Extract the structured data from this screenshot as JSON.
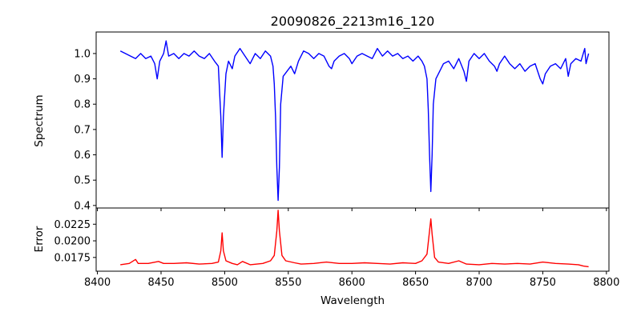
{
  "chart_data": [
    {
      "type": "line",
      "title": "20090826_2213m16_120",
      "xlabel": "",
      "ylabel": "Spectrum",
      "xlim": [
        8399,
        8802
      ],
      "ylim": [
        0.39,
        1.085
      ],
      "xticks": [
        8400,
        8450,
        8500,
        8550,
        8600,
        8650,
        8700,
        8750,
        8800
      ],
      "yticks": [
        0.4,
        0.5,
        0.6,
        0.7,
        0.8,
        0.9,
        1.0
      ],
      "ytick_labels": [
        "0.4",
        "0.5",
        "0.6",
        "0.7",
        "0.8",
        "0.9",
        "1.0"
      ],
      "grid": false,
      "series": [
        {
          "name": "Spectrum",
          "color": "#0000ff",
          "x": [
            8418,
            8422,
            8426,
            8430,
            8434,
            8438,
            8442,
            8445,
            8447,
            8449,
            8452,
            8454,
            8456,
            8460,
            8464,
            8468,
            8472,
            8476,
            8480,
            8484,
            8488,
            8492,
            8495,
            8497,
            8498,
            8499,
            8501,
            8503,
            8506,
            8508,
            8512,
            8516,
            8520,
            8524,
            8528,
            8532,
            8536,
            8538,
            8539,
            8540,
            8541,
            8542,
            8543,
            8544,
            8546,
            8549,
            8552,
            8555,
            8558,
            8562,
            8566,
            8570,
            8574,
            8578,
            8582,
            8584,
            8586,
            8590,
            8594,
            8598,
            8600,
            8604,
            8608,
            8612,
            8616,
            8620,
            8624,
            8628,
            8632,
            8636,
            8640,
            8644,
            8648,
            8652,
            8655,
            8657,
            8659,
            8660,
            8661,
            8662,
            8663,
            8664,
            8666,
            8668,
            8672,
            8676,
            8680,
            8684,
            8688,
            8690,
            8692,
            8696,
            8700,
            8704,
            8708,
            8712,
            8714,
            8716,
            8720,
            8724,
            8728,
            8732,
            8736,
            8740,
            8744,
            8748,
            8750,
            8752,
            8756,
            8760,
            8764,
            8768,
            8770,
            8772,
            8776,
            8780,
            8783,
            8784,
            8786
          ],
          "y": [
            1.01,
            1.0,
            0.99,
            0.98,
            1.0,
            0.98,
            0.99,
            0.96,
            0.9,
            0.97,
            1.0,
            1.05,
            0.99,
            1.0,
            0.98,
            1.0,
            0.99,
            1.01,
            0.99,
            0.98,
            1.0,
            0.97,
            0.95,
            0.75,
            0.59,
            0.75,
            0.92,
            0.97,
            0.94,
            0.99,
            1.02,
            0.99,
            0.96,
            1.0,
            0.98,
            1.01,
            0.99,
            0.95,
            0.88,
            0.75,
            0.55,
            0.42,
            0.55,
            0.8,
            0.91,
            0.93,
            0.95,
            0.92,
            0.97,
            1.01,
            1.0,
            0.98,
            1.0,
            0.99,
            0.95,
            0.94,
            0.97,
            0.99,
            1.0,
            0.98,
            0.96,
            0.99,
            1.0,
            0.99,
            0.98,
            1.02,
            0.99,
            1.01,
            0.99,
            1.0,
            0.98,
            0.99,
            0.97,
            0.99,
            0.97,
            0.95,
            0.9,
            0.78,
            0.6,
            0.455,
            0.6,
            0.8,
            0.9,
            0.92,
            0.96,
            0.97,
            0.94,
            0.98,
            0.93,
            0.89,
            0.97,
            1.0,
            0.98,
            1.0,
            0.97,
            0.95,
            0.93,
            0.96,
            0.99,
            0.96,
            0.94,
            0.96,
            0.93,
            0.95,
            0.96,
            0.9,
            0.88,
            0.92,
            0.95,
            0.96,
            0.94,
            0.98,
            0.91,
            0.96,
            0.98,
            0.97,
            1.02,
            0.96,
            1.0
          ]
        }
      ]
    },
    {
      "type": "line",
      "xlabel": "Wavelength",
      "ylabel": "Error",
      "xlim": [
        8399,
        8802
      ],
      "ylim": [
        0.01543,
        0.02494
      ],
      "xticks": [
        8400,
        8450,
        8500,
        8550,
        8600,
        8650,
        8700,
        8750,
        8800
      ],
      "xtick_labels": [
        "8400",
        "8450",
        "8500",
        "8550",
        "8600",
        "8650",
        "8700",
        "8750",
        "8800"
      ],
      "yticks": [
        0.0175,
        0.02,
        0.0225
      ],
      "ytick_labels": [
        "0.0175",
        "0.0200",
        "0.0225"
      ],
      "grid": false,
      "series": [
        {
          "name": "Error",
          "color": "#ff0000",
          "x": [
            8418,
            8425,
            8430,
            8432,
            8440,
            8448,
            8452,
            8460,
            8470,
            8480,
            8490,
            8495,
            8497,
            8498,
            8499,
            8501,
            8506,
            8510,
            8514,
            8520,
            8530,
            8536,
            8539,
            8541,
            8542,
            8543,
            8545,
            8548,
            8555,
            8560,
            8570,
            8580,
            8590,
            8600,
            8610,
            8620,
            8630,
            8640,
            8650,
            8655,
            8659,
            8661,
            8662,
            8663,
            8665,
            8668,
            8676,
            8684,
            8690,
            8700,
            8710,
            8720,
            8730,
            8740,
            8750,
            8760,
            8770,
            8778,
            8782,
            8786
          ],
          "y": [
            0.0164,
            0.0166,
            0.0172,
            0.0166,
            0.0166,
            0.0169,
            0.0166,
            0.0166,
            0.0167,
            0.0165,
            0.0166,
            0.0168,
            0.0185,
            0.0212,
            0.0185,
            0.017,
            0.0166,
            0.0164,
            0.0169,
            0.0164,
            0.0166,
            0.017,
            0.0178,
            0.0215,
            0.0246,
            0.0215,
            0.0178,
            0.017,
            0.0167,
            0.0165,
            0.0166,
            0.0168,
            0.0166,
            0.0166,
            0.0167,
            0.0166,
            0.0165,
            0.0167,
            0.0166,
            0.017,
            0.018,
            0.0215,
            0.0233,
            0.021,
            0.0175,
            0.0168,
            0.0166,
            0.017,
            0.0165,
            0.0164,
            0.0166,
            0.0165,
            0.0166,
            0.0165,
            0.0168,
            0.0166,
            0.0165,
            0.0164,
            0.0162,
            0.0161
          ]
        }
      ]
    }
  ]
}
